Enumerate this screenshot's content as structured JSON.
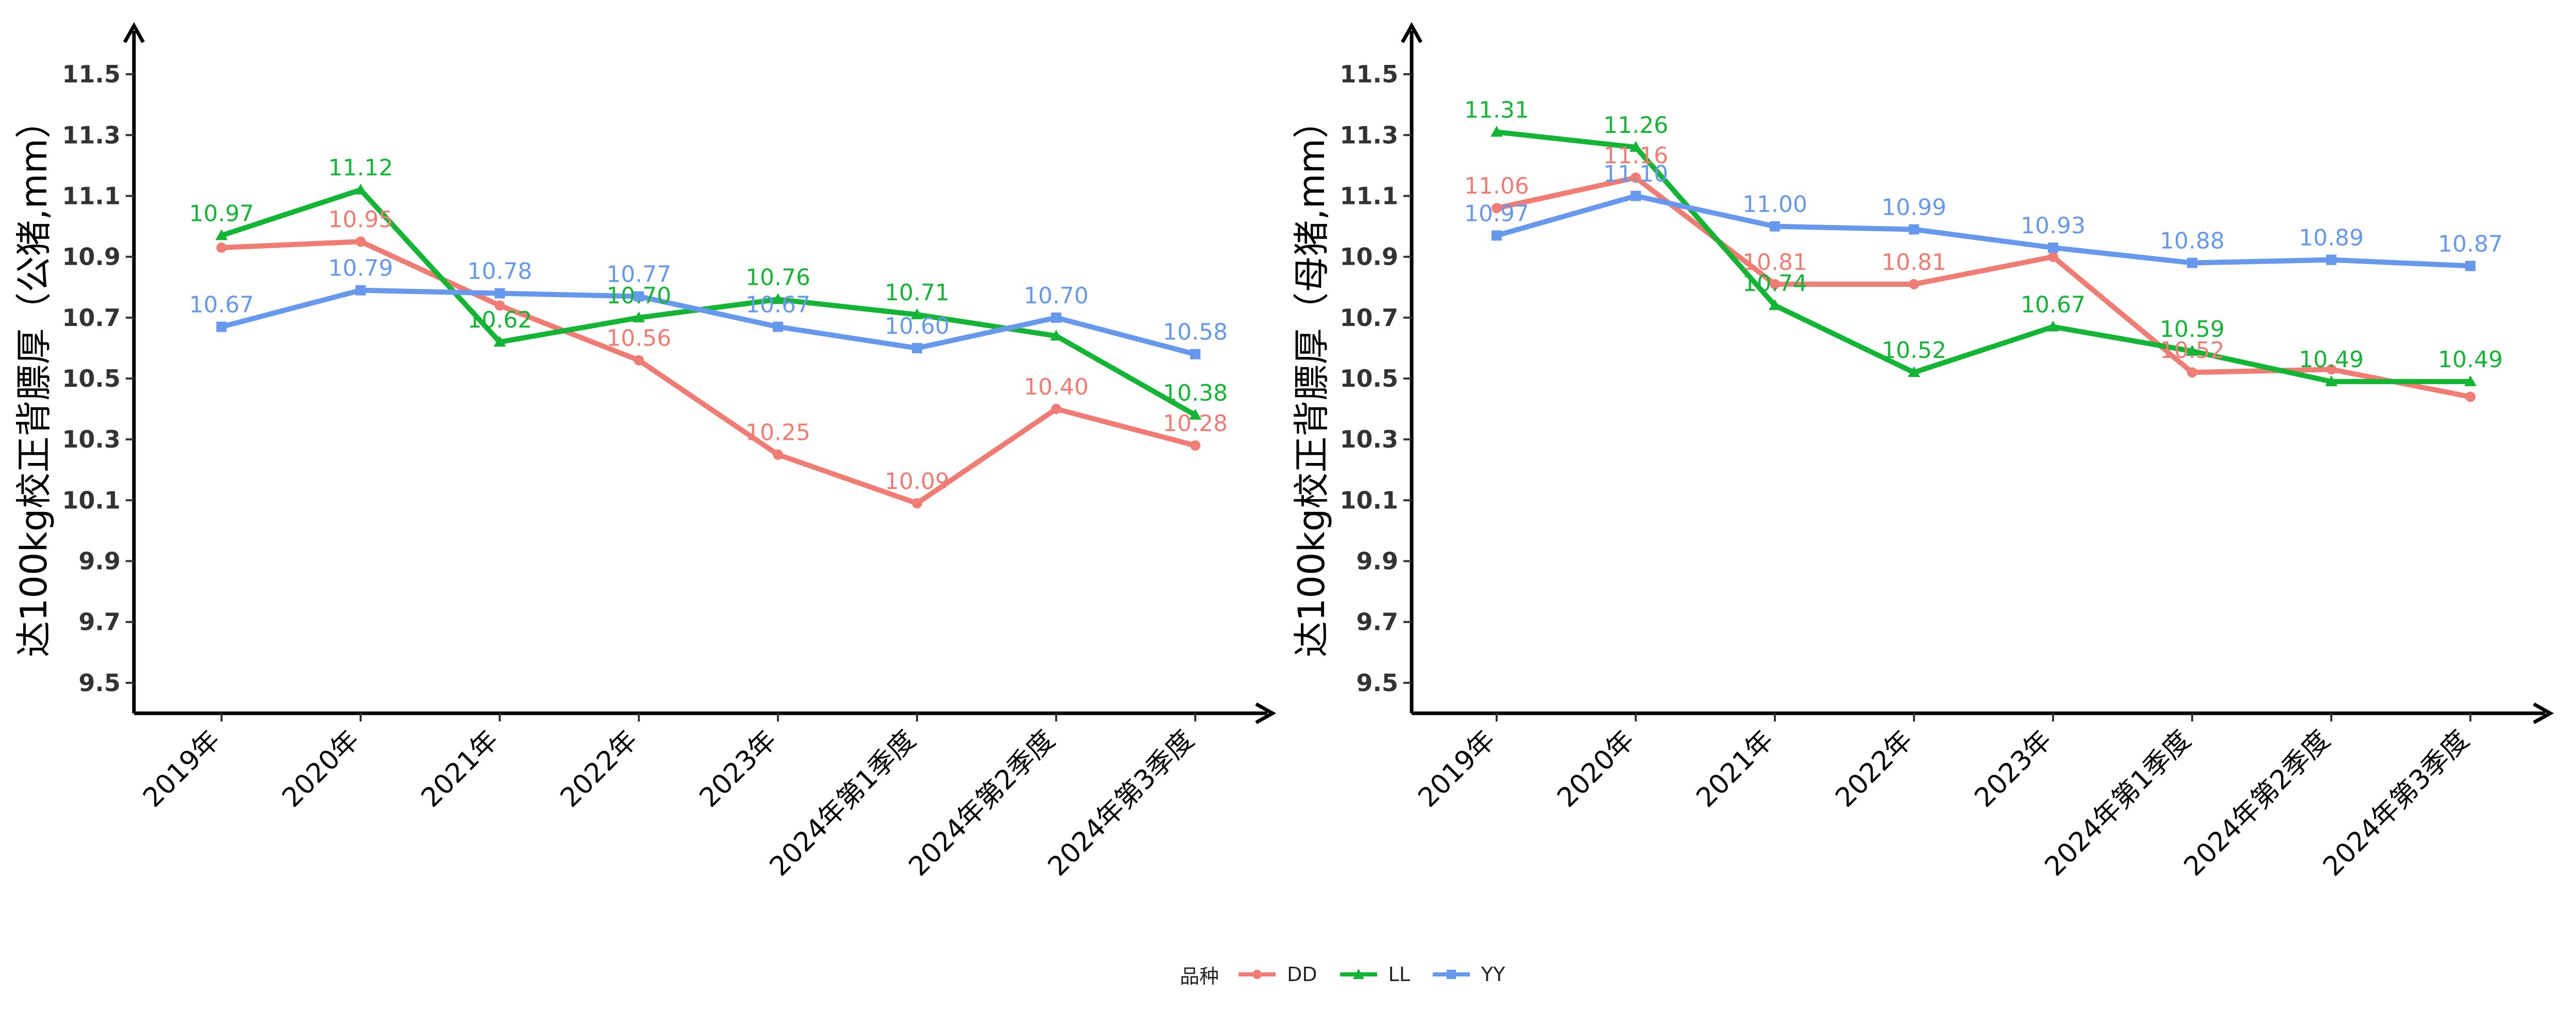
{
  "colors": {
    "DD": "#F17C73",
    "LL": "#13B535",
    "YY": "#6699EE"
  },
  "legend": {
    "title": "品种",
    "items": [
      {
        "name": "DD",
        "marker": "circle"
      },
      {
        "name": "LL",
        "marker": "triangle"
      },
      {
        "name": "YY",
        "marker": "square"
      }
    ]
  },
  "chart_data": [
    {
      "type": "line",
      "ylabel": "达100kg校正背膘厚（公猪,mm）",
      "xlabel": "",
      "ylim": [
        9.4,
        11.6
      ],
      "yticks": [
        "9.5",
        "9.7",
        "9.9",
        "10.1",
        "10.3",
        "10.5",
        "10.7",
        "10.9",
        "11.1",
        "11.3",
        "11.5"
      ],
      "categories": [
        "2019年",
        "2020年",
        "2021年",
        "2022年",
        "2023年",
        "2024年第1季度",
        "2024年第2季度",
        "2024年第3季度"
      ],
      "series": [
        {
          "name": "DD",
          "values": [
            10.93,
            10.95,
            10.74,
            10.56,
            10.25,
            10.09,
            10.4,
            10.28
          ],
          "labels": [
            "",
            "10.95",
            "",
            "10.56",
            "10.25",
            "10.09",
            "10.40",
            "10.28"
          ]
        },
        {
          "name": "LL",
          "values": [
            10.97,
            11.12,
            10.62,
            10.7,
            10.76,
            10.71,
            10.64,
            10.38
          ],
          "labels": [
            "10.97",
            "11.12",
            "10.62",
            "10.70",
            "10.76",
            "10.71",
            "",
            "10.38"
          ]
        },
        {
          "name": "YY",
          "values": [
            10.67,
            10.79,
            10.78,
            10.77,
            10.67,
            10.6,
            10.7,
            10.58
          ],
          "labels": [
            "10.67",
            "10.79",
            "10.78",
            "10.77",
            "10.67",
            "10.60",
            "10.70",
            "10.58"
          ]
        }
      ]
    },
    {
      "type": "line",
      "ylabel": "达100kg校正背膘厚（母猪,mm）",
      "xlabel": "",
      "ylim": [
        9.4,
        11.6
      ],
      "yticks": [
        "9.5",
        "9.7",
        "9.9",
        "10.1",
        "10.3",
        "10.5",
        "10.7",
        "10.9",
        "11.1",
        "11.3",
        "11.5"
      ],
      "categories": [
        "2019年",
        "2020年",
        "2021年",
        "2022年",
        "2023年",
        "2024年第1季度",
        "2024年第2季度",
        "2024年第3季度"
      ],
      "series": [
        {
          "name": "DD",
          "values": [
            11.06,
            11.16,
            10.81,
            10.81,
            10.9,
            10.52,
            10.53,
            10.44
          ],
          "labels": [
            "11.06",
            "11.16",
            "10.81",
            "10.81",
            "",
            "10.52",
            "",
            ""
          ]
        },
        {
          "name": "LL",
          "values": [
            11.31,
            11.26,
            10.74,
            10.52,
            10.67,
            10.59,
            10.49,
            10.49
          ],
          "labels": [
            "11.31",
            "11.26",
            "10.74",
            "10.52",
            "10.67",
            "10.59",
            "10.49",
            "10.49"
          ]
        },
        {
          "name": "YY",
          "values": [
            10.97,
            11.1,
            11.0,
            10.99,
            10.93,
            10.88,
            10.89,
            10.87
          ],
          "labels": [
            "10.97",
            "11.10",
            "11.00",
            "10.99",
            "10.93",
            "10.88",
            "10.89",
            "10.87"
          ]
        }
      ]
    }
  ]
}
